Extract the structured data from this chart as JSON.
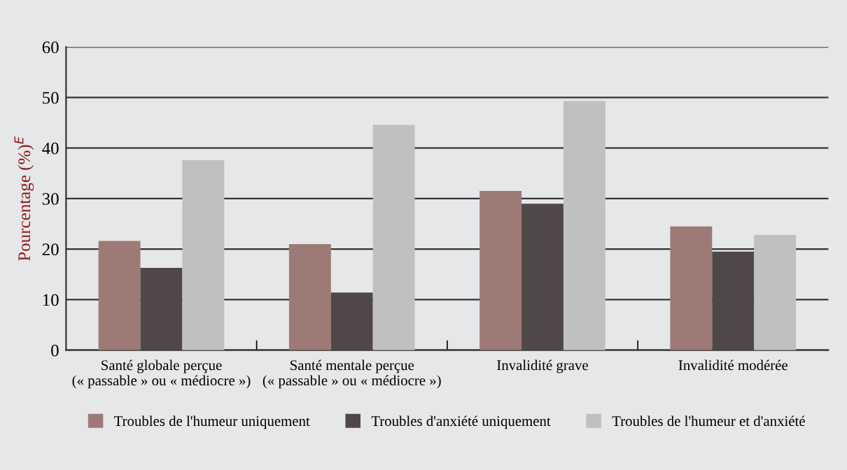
{
  "chart_data": {
    "type": "bar",
    "ylabel": "Pourcentage (%)$^{E}$",
    "categories": [
      "Santé globale perçue\n(« passable » ou « médiocre »)",
      "Santé mentale perçue\n(« passable » ou « médiocre »)",
      "Invalidité grave",
      "Invalidité modérée"
    ],
    "series": [
      {
        "name": "Troubles de l'humeur uniquement",
        "color": "#9e7a76",
        "values": [
          21.6,
          21.0,
          31.5,
          24.5
        ]
      },
      {
        "name": "Troubles d'anxiété uniquement",
        "color": "#504848",
        "values": [
          16.3,
          11.4,
          29.0,
          19.5
        ]
      },
      {
        "name": "Troubles de l'humeur et d'anxiété",
        "color": "#c0c0c0",
        "values": [
          37.6,
          44.6,
          49.3,
          22.8
        ]
      }
    ],
    "ylim": [
      0,
      60
    ],
    "yticks": [
      0,
      10,
      20,
      30,
      40,
      50,
      60
    ],
    "grid": "y",
    "legend": "bottom"
  }
}
